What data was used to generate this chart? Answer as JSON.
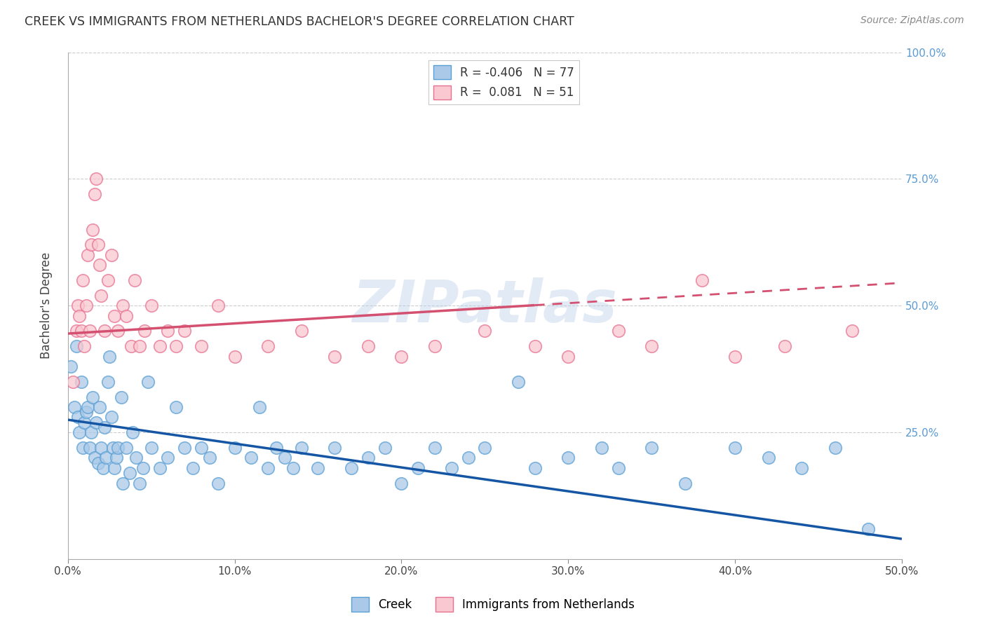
{
  "title": "CREEK VS IMMIGRANTS FROM NETHERLANDS BACHELOR'S DEGREE CORRELATION CHART",
  "source": "Source: ZipAtlas.com",
  "ylabel": "Bachelor's Degree",
  "xlim": [
    0.0,
    0.5
  ],
  "ylim": [
    0.0,
    1.0
  ],
  "xtick_labels": [
    "0.0%",
    "10.0%",
    "20.0%",
    "30.0%",
    "40.0%",
    "50.0%"
  ],
  "xtick_vals": [
    0.0,
    0.1,
    0.2,
    0.3,
    0.4,
    0.5
  ],
  "ytick_vals": [
    0.25,
    0.5,
    0.75,
    1.0
  ],
  "ytick_right_labels": [
    "25.0%",
    "50.0%",
    "75.0%",
    "100.0%"
  ],
  "creek_color": "#aac9e8",
  "creek_edge_color": "#5a9fd4",
  "netherlands_color": "#f9c8d0",
  "netherlands_edge_color": "#e87090",
  "creek_line_color": "#1455a4",
  "netherlands_line_color": "#d45070",
  "creek_R": -0.406,
  "creek_N": 77,
  "netherlands_R": 0.081,
  "netherlands_N": 51,
  "watermark": "ZIPatlas",
  "background_color": "#ffffff",
  "grid_color": "#cccccc",
  "creek_line_x0": 0.0,
  "creek_line_y0": 0.275,
  "creek_line_x1": 0.5,
  "creek_line_y1": 0.04,
  "neth_line_x0": 0.0,
  "neth_line_y0": 0.445,
  "neth_line_x1": 0.5,
  "neth_line_y1": 0.545,
  "neth_line_solid_end": 0.28,
  "creek_x": [
    0.002,
    0.004,
    0.005,
    0.006,
    0.007,
    0.008,
    0.009,
    0.01,
    0.011,
    0.012,
    0.013,
    0.014,
    0.015,
    0.016,
    0.017,
    0.018,
    0.019,
    0.02,
    0.021,
    0.022,
    0.023,
    0.024,
    0.025,
    0.026,
    0.027,
    0.028,
    0.029,
    0.03,
    0.032,
    0.033,
    0.035,
    0.037,
    0.039,
    0.041,
    0.043,
    0.045,
    0.048,
    0.05,
    0.055,
    0.06,
    0.065,
    0.07,
    0.075,
    0.08,
    0.085,
    0.09,
    0.1,
    0.11,
    0.115,
    0.12,
    0.125,
    0.13,
    0.135,
    0.14,
    0.15,
    0.16,
    0.17,
    0.18,
    0.19,
    0.2,
    0.21,
    0.22,
    0.23,
    0.24,
    0.25,
    0.27,
    0.28,
    0.3,
    0.32,
    0.33,
    0.35,
    0.37,
    0.4,
    0.42,
    0.44,
    0.46,
    0.48
  ],
  "creek_y": [
    0.38,
    0.3,
    0.42,
    0.28,
    0.25,
    0.35,
    0.22,
    0.27,
    0.29,
    0.3,
    0.22,
    0.25,
    0.32,
    0.2,
    0.27,
    0.19,
    0.3,
    0.22,
    0.18,
    0.26,
    0.2,
    0.35,
    0.4,
    0.28,
    0.22,
    0.18,
    0.2,
    0.22,
    0.32,
    0.15,
    0.22,
    0.17,
    0.25,
    0.2,
    0.15,
    0.18,
    0.35,
    0.22,
    0.18,
    0.2,
    0.3,
    0.22,
    0.18,
    0.22,
    0.2,
    0.15,
    0.22,
    0.2,
    0.3,
    0.18,
    0.22,
    0.2,
    0.18,
    0.22,
    0.18,
    0.22,
    0.18,
    0.2,
    0.22,
    0.15,
    0.18,
    0.22,
    0.18,
    0.2,
    0.22,
    0.35,
    0.18,
    0.2,
    0.22,
    0.18,
    0.22,
    0.15,
    0.22,
    0.2,
    0.18,
    0.22,
    0.06
  ],
  "netherlands_x": [
    0.003,
    0.005,
    0.006,
    0.007,
    0.008,
    0.009,
    0.01,
    0.011,
    0.012,
    0.013,
    0.014,
    0.015,
    0.016,
    0.017,
    0.018,
    0.019,
    0.02,
    0.022,
    0.024,
    0.026,
    0.028,
    0.03,
    0.033,
    0.035,
    0.038,
    0.04,
    0.043,
    0.046,
    0.05,
    0.055,
    0.06,
    0.065,
    0.07,
    0.08,
    0.09,
    0.1,
    0.12,
    0.14,
    0.16,
    0.18,
    0.2,
    0.22,
    0.25,
    0.28,
    0.3,
    0.33,
    0.35,
    0.38,
    0.4,
    0.43,
    0.47
  ],
  "netherlands_y": [
    0.35,
    0.45,
    0.5,
    0.48,
    0.45,
    0.55,
    0.42,
    0.5,
    0.6,
    0.45,
    0.62,
    0.65,
    0.72,
    0.75,
    0.62,
    0.58,
    0.52,
    0.45,
    0.55,
    0.6,
    0.48,
    0.45,
    0.5,
    0.48,
    0.42,
    0.55,
    0.42,
    0.45,
    0.5,
    0.42,
    0.45,
    0.42,
    0.45,
    0.42,
    0.5,
    0.4,
    0.42,
    0.45,
    0.4,
    0.42,
    0.4,
    0.42,
    0.45,
    0.42,
    0.4,
    0.45,
    0.42,
    0.55,
    0.4,
    0.42,
    0.45
  ]
}
